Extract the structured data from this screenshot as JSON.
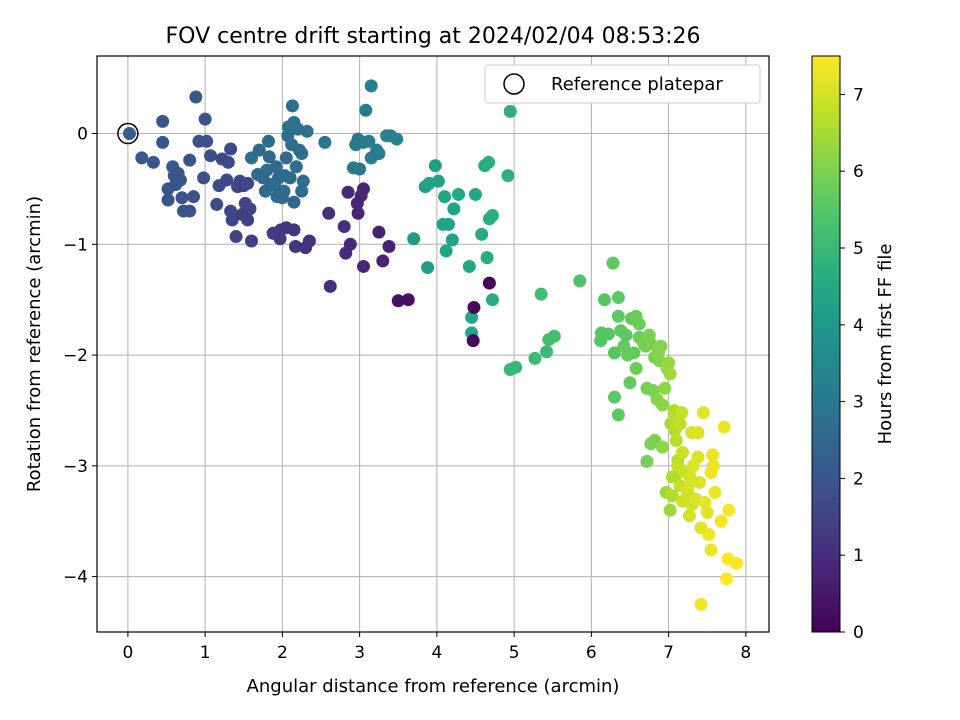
{
  "chart_data": {
    "type": "scatter",
    "title": "FOV centre drift starting at 2024/02/04 08:53:26",
    "xlabel": "Angular distance from reference (arcmin)",
    "ylabel": "Rotation from reference (arcmin)",
    "xlim": [
      -0.4,
      8.3
    ],
    "ylim": [
      -4.5,
      0.7
    ],
    "xticks": [
      0,
      1,
      2,
      3,
      4,
      5,
      6,
      7,
      8
    ],
    "yticks": [
      0,
      -1,
      -2,
      -3,
      -4
    ],
    "grid": true,
    "legend": {
      "position": "top-right",
      "entries": [
        "Reference platepar"
      ]
    },
    "reference_point": {
      "x": 0,
      "y": 0,
      "label": "Reference platepar"
    },
    "colorbar": {
      "label": "Hours from first FF file",
      "cmap": "viridis",
      "range": [
        0,
        7.5
      ],
      "ticks": [
        0,
        1,
        2,
        3,
        4,
        5,
        6,
        7
      ]
    },
    "points": [
      [
        0.02,
        0.0,
        2.2
      ],
      [
        0.18,
        -0.22,
        2.1
      ],
      [
        0.33,
        -0.26,
        2.0
      ],
      [
        0.45,
        -0.08,
        2.0
      ],
      [
        0.45,
        0.11,
        2.0
      ],
      [
        0.52,
        -0.5,
        2.0
      ],
      [
        0.52,
        -0.6,
        2.0
      ],
      [
        0.58,
        -0.3,
        2.1
      ],
      [
        0.6,
        -0.38,
        2.1
      ],
      [
        0.62,
        -0.46,
        1.9
      ],
      [
        0.65,
        -0.36,
        2.0
      ],
      [
        0.68,
        -0.42,
        2.0
      ],
      [
        0.7,
        -0.58,
        1.9
      ],
      [
        0.72,
        -0.7,
        2.0
      ],
      [
        0.8,
        -0.7,
        1.9
      ],
      [
        0.8,
        -0.24,
        2.0
      ],
      [
        0.85,
        -0.57,
        1.9
      ],
      [
        0.88,
        0.33,
        2.1
      ],
      [
        0.92,
        -0.07,
        1.8
      ],
      [
        0.98,
        -0.4,
        1.9
      ],
      [
        1.0,
        0.13,
        1.9
      ],
      [
        1.02,
        -0.07,
        1.9
      ],
      [
        1.07,
        -0.2,
        1.8
      ],
      [
        1.15,
        -0.64,
        1.7
      ],
      [
        1.18,
        -0.47,
        1.7
      ],
      [
        1.22,
        -0.23,
        1.7
      ],
      [
        1.28,
        -0.42,
        1.6
      ],
      [
        1.3,
        -0.26,
        1.6
      ],
      [
        1.33,
        -0.14,
        1.6
      ],
      [
        1.33,
        -0.7,
        1.6
      ],
      [
        1.35,
        -0.78,
        1.5
      ],
      [
        1.4,
        -0.93,
        1.5
      ],
      [
        1.42,
        -0.48,
        1.5
      ],
      [
        1.45,
        -0.43,
        1.5
      ],
      [
        1.48,
        -0.73,
        1.4
      ],
      [
        1.5,
        -0.47,
        1.4
      ],
      [
        1.52,
        -0.63,
        1.5
      ],
      [
        1.55,
        -0.45,
        1.5
      ],
      [
        1.55,
        -0.78,
        1.4
      ],
      [
        1.58,
        -0.68,
        1.5
      ],
      [
        1.6,
        -0.97,
        1.4
      ],
      [
        1.6,
        -0.22,
        2.7
      ],
      [
        1.68,
        -0.37,
        2.6
      ],
      [
        1.7,
        -0.15,
        2.6
      ],
      [
        1.75,
        -0.4,
        2.6
      ],
      [
        1.78,
        -0.52,
        2.6
      ],
      [
        1.8,
        -0.33,
        2.6
      ],
      [
        1.82,
        -0.07,
        2.6
      ],
      [
        1.83,
        -0.21,
        2.5
      ],
      [
        1.85,
        -0.46,
        2.5
      ],
      [
        1.88,
        -0.9,
        1.3
      ],
      [
        1.9,
        -0.47,
        2.6
      ],
      [
        1.92,
        -0.3,
        2.6
      ],
      [
        1.93,
        -0.57,
        2.6
      ],
      [
        1.95,
        -0.4,
        2.5
      ],
      [
        1.97,
        -0.95,
        1.3
      ],
      [
        1.98,
        -0.87,
        1.3
      ],
      [
        2.0,
        -0.58,
        2.6
      ],
      [
        2.02,
        -0.52,
        2.6
      ],
      [
        2.03,
        -0.38,
        2.6
      ],
      [
        2.05,
        -0.85,
        1.2
      ],
      [
        2.05,
        -0.22,
        2.6
      ],
      [
        2.07,
        -0.02,
        2.7
      ],
      [
        2.08,
        0.06,
        2.7
      ],
      [
        2.1,
        -0.4,
        2.6
      ],
      [
        2.12,
        -0.1,
        2.7
      ],
      [
        2.13,
        0.25,
        2.8
      ],
      [
        2.15,
        -0.87,
        1.2
      ],
      [
        2.15,
        0.1,
        2.8
      ],
      [
        2.15,
        -0.62,
        2.5
      ],
      [
        2.17,
        -1.02,
        1.2
      ],
      [
        2.18,
        -0.3,
        2.7
      ],
      [
        2.2,
        0.04,
        2.8
      ],
      [
        2.22,
        -0.15,
        2.7
      ],
      [
        2.25,
        -0.52,
        2.6
      ],
      [
        2.25,
        -0.18,
        2.7
      ],
      [
        2.27,
        -0.43,
        2.6
      ],
      [
        2.3,
        -1.03,
        1.1
      ],
      [
        2.32,
        0.02,
        2.8
      ],
      [
        2.35,
        -0.97,
        1.1
      ],
      [
        2.55,
        -0.08,
        2.9
      ],
      [
        2.6,
        -0.72,
        1.0
      ],
      [
        2.62,
        -1.38,
        1.0
      ],
      [
        2.8,
        -0.84,
        1.0
      ],
      [
        2.82,
        -1.08,
        0.9
      ],
      [
        2.85,
        -0.53,
        0.9
      ],
      [
        2.88,
        -1.0,
        0.9
      ],
      [
        2.92,
        -0.31,
        3.0
      ],
      [
        2.95,
        -0.1,
        3.0
      ],
      [
        2.97,
        -0.63,
        0.8
      ],
      [
        2.98,
        -0.05,
        3.0
      ],
      [
        2.98,
        -0.72,
        0.8
      ],
      [
        3.0,
        -0.32,
        3.0
      ],
      [
        3.02,
        -0.56,
        0.8
      ],
      [
        3.05,
        -0.5,
        0.8
      ],
      [
        3.05,
        -0.08,
        3.1
      ],
      [
        3.05,
        -1.2,
        0.8
      ],
      [
        3.08,
        0.21,
        3.1
      ],
      [
        3.12,
        -0.07,
        3.1
      ],
      [
        3.15,
        0.43,
        3.2
      ],
      [
        3.15,
        -0.22,
        3.1
      ],
      [
        3.22,
        -0.15,
        3.1
      ],
      [
        3.25,
        -0.89,
        0.7
      ],
      [
        3.25,
        -0.18,
        3.1
      ],
      [
        3.3,
        -1.15,
        0.7
      ],
      [
        3.35,
        -0.02,
        3.3
      ],
      [
        3.38,
        -1.02,
        0.7
      ],
      [
        3.4,
        -0.02,
        3.3
      ],
      [
        3.48,
        -0.05,
        3.3
      ],
      [
        3.5,
        -1.51,
        0.3
      ],
      [
        3.63,
        -1.5,
        0.3
      ],
      [
        3.7,
        -0.95,
        4.1
      ],
      [
        3.85,
        -0.48,
        4.2
      ],
      [
        3.88,
        -1.21,
        4.2
      ],
      [
        3.9,
        -0.45,
        4.3
      ],
      [
        3.98,
        -0.29,
        4.2
      ],
      [
        4.02,
        -0.43,
        4.3
      ],
      [
        4.08,
        -0.82,
        4.3
      ],
      [
        4.1,
        -0.57,
        4.4
      ],
      [
        4.12,
        -1.06,
        4.4
      ],
      [
        4.15,
        -0.82,
        4.4
      ],
      [
        4.2,
        -0.96,
        4.3
      ],
      [
        4.22,
        -0.68,
        4.4
      ],
      [
        4.28,
        -0.55,
        4.5
      ],
      [
        4.42,
        -1.2,
        4.5
      ],
      [
        4.45,
        -1.66,
        4.5
      ],
      [
        4.45,
        -1.8,
        4.5
      ],
      [
        4.47,
        -1.87,
        0.2
      ],
      [
        4.48,
        -1.57,
        0.2
      ],
      [
        4.5,
        -0.55,
        4.5
      ],
      [
        4.58,
        -0.91,
        4.6
      ],
      [
        4.62,
        -0.29,
        4.6
      ],
      [
        4.65,
        -1.12,
        4.6
      ],
      [
        4.67,
        -0.26,
        4.7
      ],
      [
        4.68,
        -0.77,
        4.7
      ],
      [
        4.68,
        -1.35,
        0.1
      ],
      [
        4.72,
        -0.74,
        4.7
      ],
      [
        4.72,
        -1.5,
        4.6
      ],
      [
        4.92,
        -0.38,
        4.8
      ],
      [
        4.95,
        0.2,
        4.8
      ],
      [
        4.95,
        -2.13,
        5.0
      ],
      [
        5.02,
        -2.11,
        5.0
      ],
      [
        5.27,
        -2.03,
        5.1
      ],
      [
        5.35,
        -1.45,
        5.2
      ],
      [
        5.42,
        -1.97,
        5.1
      ],
      [
        5.45,
        -1.86,
        5.2
      ],
      [
        5.52,
        -1.83,
        5.2
      ],
      [
        5.85,
        -1.33,
        5.4
      ],
      [
        6.12,
        -1.87,
        5.5
      ],
      [
        6.13,
        -1.8,
        5.5
      ],
      [
        6.17,
        -1.5,
        5.5
      ],
      [
        6.22,
        -1.81,
        5.5
      ],
      [
        6.28,
        -1.17,
        5.6
      ],
      [
        6.3,
        -1.98,
        5.5
      ],
      [
        6.3,
        -2.38,
        5.6
      ],
      [
        6.35,
        -1.65,
        5.6
      ],
      [
        6.35,
        -1.48,
        5.6
      ],
      [
        6.35,
        -2.54,
        5.6
      ],
      [
        6.38,
        -1.78,
        5.6
      ],
      [
        6.42,
        -1.92,
        5.7
      ],
      [
        6.45,
        -1.82,
        5.6
      ],
      [
        6.47,
        -2.0,
        5.7
      ],
      [
        6.5,
        -2.25,
        5.7
      ],
      [
        6.52,
        -1.67,
        5.7
      ],
      [
        6.55,
        -1.98,
        5.7
      ],
      [
        6.58,
        -2.12,
        5.8
      ],
      [
        6.58,
        -1.65,
        5.8
      ],
      [
        6.62,
        -1.72,
        5.8
      ],
      [
        6.62,
        -1.84,
        5.8
      ],
      [
        6.68,
        -1.9,
        5.9
      ],
      [
        6.7,
        -1.92,
        5.9
      ],
      [
        6.72,
        -2.3,
        5.9
      ],
      [
        6.72,
        -2.96,
        5.9
      ],
      [
        6.75,
        -1.82,
        6.0
      ],
      [
        6.77,
        -2.8,
        6.0
      ],
      [
        6.77,
        -1.9,
        6.0
      ],
      [
        6.8,
        -2.32,
        6.0
      ],
      [
        6.82,
        -2.02,
        6.0
      ],
      [
        6.82,
        -2.77,
        6.0
      ],
      [
        6.85,
        -2.4,
        6.1
      ],
      [
        6.87,
        -1.97,
        6.1
      ],
      [
        6.88,
        -2.05,
        6.1
      ],
      [
        6.9,
        -1.92,
        6.1
      ],
      [
        6.92,
        -2.83,
        6.2
      ],
      [
        6.92,
        -2.45,
        6.2
      ],
      [
        6.95,
        -2.3,
        6.2
      ],
      [
        6.97,
        -3.24,
        6.4
      ],
      [
        6.98,
        -2.12,
        6.3
      ],
      [
        7.0,
        -2.07,
        6.3
      ],
      [
        7.02,
        -3.4,
        6.4
      ],
      [
        7.02,
        -2.17,
        6.4
      ],
      [
        7.03,
        -2.62,
        6.5
      ],
      [
        7.05,
        -3.1,
        6.5
      ],
      [
        7.05,
        -3.27,
        6.6
      ],
      [
        7.07,
        -2.5,
        6.6
      ],
      [
        7.08,
        -2.68,
        6.6
      ],
      [
        7.08,
        -3.1,
        6.6
      ],
      [
        7.08,
        -2.57,
        6.7
      ],
      [
        7.1,
        -2.77,
        6.7
      ],
      [
        7.12,
        -2.95,
        6.7
      ],
      [
        7.12,
        -3.0,
        6.8
      ],
      [
        7.15,
        -2.62,
        6.8
      ],
      [
        7.15,
        -3.18,
        6.8
      ],
      [
        7.17,
        -2.52,
        6.8
      ],
      [
        7.18,
        -2.88,
        6.9
      ],
      [
        7.18,
        -3.32,
        6.9
      ],
      [
        7.2,
        -3.05,
        6.9
      ],
      [
        7.22,
        -3.3,
        6.9
      ],
      [
        7.25,
        -3.25,
        6.9
      ],
      [
        7.25,
        -3.2,
        7.0
      ],
      [
        7.27,
        -3.45,
        7.0
      ],
      [
        7.28,
        -3.1,
        7.0
      ],
      [
        7.3,
        -2.7,
        7.0
      ],
      [
        7.3,
        -3.35,
        7.0
      ],
      [
        7.32,
        -3.0,
        7.1
      ],
      [
        7.35,
        -3.3,
        7.1
      ],
      [
        7.38,
        -2.92,
        7.1
      ],
      [
        7.38,
        -2.7,
        7.1
      ],
      [
        7.4,
        -3.15,
        7.1
      ],
      [
        7.42,
        -3.56,
        7.2
      ],
      [
        7.42,
        -4.25,
        7.4
      ],
      [
        7.45,
        -2.52,
        7.2
      ],
      [
        7.47,
        -3.33,
        7.2
      ],
      [
        7.5,
        -3.42,
        7.2
      ],
      [
        7.52,
        -3.62,
        7.3
      ],
      [
        7.55,
        -3.06,
        7.3
      ],
      [
        7.55,
        -3.76,
        7.3
      ],
      [
        7.57,
        -2.9,
        7.3
      ],
      [
        7.58,
        -3.0,
        7.3
      ],
      [
        7.6,
        -3.24,
        7.3
      ],
      [
        7.68,
        -3.5,
        7.4
      ],
      [
        7.72,
        -2.65,
        7.3
      ],
      [
        7.75,
        -4.02,
        7.5
      ],
      [
        7.77,
        -3.84,
        7.5
      ],
      [
        7.78,
        -3.4,
        7.4
      ],
      [
        7.88,
        -3.88,
        7.5
      ]
    ]
  }
}
